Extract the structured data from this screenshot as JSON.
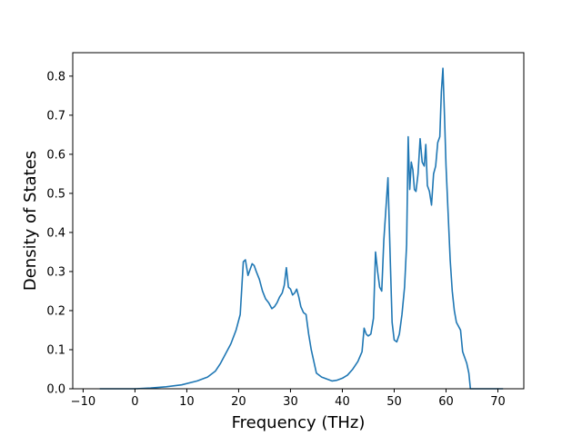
{
  "chart_data": {
    "type": "line",
    "title": "",
    "xlabel": "Frequency (THz)",
    "ylabel": "Density of States",
    "xlim": [
      -12,
      75
    ],
    "ylim": [
      0,
      0.86
    ],
    "xticks": [
      -10,
      0,
      10,
      20,
      30,
      40,
      50,
      60,
      70
    ],
    "xtick_labels": [
      "−10",
      "0",
      "10",
      "20",
      "30",
      "40",
      "50",
      "60",
      "70"
    ],
    "yticks": [
      0.0,
      0.1,
      0.2,
      0.3,
      0.4,
      0.5,
      0.6,
      0.7,
      0.8
    ],
    "ytick_labels": [
      "0.0",
      "0.1",
      "0.2",
      "0.3",
      "0.4",
      "0.5",
      "0.6",
      "0.7",
      "0.8"
    ],
    "grid": false,
    "line_color": "#1f77b4",
    "series": [
      {
        "x": [
          -6.8,
          -2,
          0,
          3,
          6,
          9,
          12,
          14,
          15.5,
          16.5,
          17.5,
          18.5,
          19.5,
          20.3,
          20.9,
          21.3,
          21.8,
          22.2,
          22.6,
          23.0,
          23.4,
          24.0,
          24.6,
          25.2,
          25.8,
          26.4,
          26.9,
          27.4,
          27.9,
          28.4,
          28.8,
          29.2,
          29.6,
          30.0,
          30.4,
          30.8,
          31.2,
          31.6,
          32.0,
          32.5,
          33.0,
          33.5,
          34.0,
          35.0,
          36.0,
          37.0,
          38.0,
          39.0,
          40.0,
          41.0,
          42.0,
          43.0,
          43.8,
          44.2,
          44.6,
          45.0,
          45.5,
          46.0,
          46.4,
          46.8,
          47.2,
          47.6,
          48.0,
          48.4,
          48.8,
          49.2,
          49.6,
          50.0,
          50.5,
          51.0,
          51.5,
          52.0,
          52.4,
          52.7,
          53.0,
          53.3,
          53.6,
          53.9,
          54.2,
          54.6,
          55.0,
          55.4,
          55.8,
          56.1,
          56.4,
          56.8,
          57.2,
          57.6,
          58.0,
          58.4,
          58.8,
          59.1,
          59.4,
          59.7,
          60.0,
          60.4,
          60.8,
          61.2,
          61.6,
          62.0,
          62.4,
          62.8,
          63.2,
          63.6,
          64.0,
          64.4,
          64.7,
          65.0,
          67.0,
          69.0,
          71.0
        ],
        "y": [
          0.0,
          0.0,
          0.0,
          0.002,
          0.005,
          0.01,
          0.02,
          0.03,
          0.045,
          0.065,
          0.09,
          0.115,
          0.15,
          0.19,
          0.325,
          0.33,
          0.29,
          0.305,
          0.32,
          0.315,
          0.3,
          0.28,
          0.25,
          0.23,
          0.22,
          0.205,
          0.21,
          0.22,
          0.235,
          0.245,
          0.265,
          0.31,
          0.26,
          0.255,
          0.24,
          0.245,
          0.255,
          0.235,
          0.21,
          0.195,
          0.19,
          0.14,
          0.1,
          0.04,
          0.03,
          0.025,
          0.02,
          0.022,
          0.027,
          0.035,
          0.05,
          0.07,
          0.095,
          0.155,
          0.14,
          0.135,
          0.14,
          0.18,
          0.35,
          0.3,
          0.26,
          0.25,
          0.38,
          0.46,
          0.54,
          0.35,
          0.17,
          0.125,
          0.12,
          0.14,
          0.19,
          0.26,
          0.37,
          0.645,
          0.51,
          0.58,
          0.56,
          0.51,
          0.505,
          0.55,
          0.64,
          0.58,
          0.57,
          0.625,
          0.52,
          0.505,
          0.47,
          0.55,
          0.57,
          0.63,
          0.645,
          0.76,
          0.82,
          0.7,
          0.57,
          0.45,
          0.33,
          0.25,
          0.2,
          0.17,
          0.16,
          0.15,
          0.095,
          0.08,
          0.065,
          0.04,
          0.0,
          0.0,
          0.0,
          0.0,
          0.0
        ]
      }
    ]
  }
}
